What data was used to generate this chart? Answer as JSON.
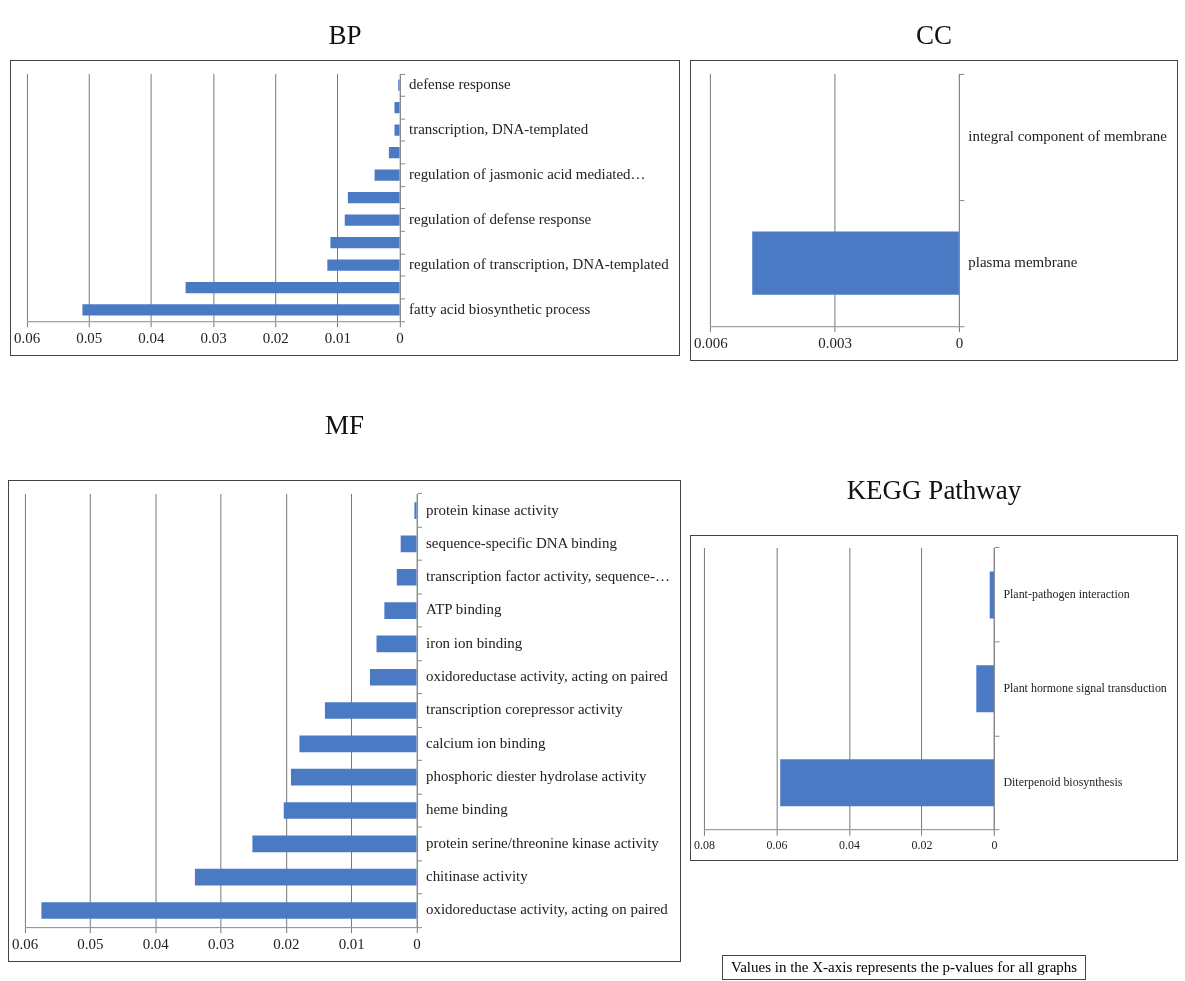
{
  "chart_data": [
    {
      "type": "bar",
      "title": "BP",
      "orientation": "horizontal",
      "categories": [
        "defense response",
        null,
        "transcription, DNA-templated",
        null,
        "regulation of jasmonic acid mediated…",
        null,
        "regulation of defense response",
        null,
        "regulation of transcription, DNA-templated",
        null,
        "fatty acid biosynthetic process"
      ],
      "values": [
        0.0003,
        0.0009,
        0.0009,
        0.0018,
        0.0041,
        0.0084,
        0.0089,
        0.0112,
        0.0117,
        0.0345,
        0.0511
      ],
      "color": "#4a7ac4",
      "xlim": [
        0.06,
        0
      ],
      "xticks": [
        0.06,
        0.05,
        0.04,
        0.03,
        0.02,
        0.01,
        0
      ],
      "grid": "x"
    },
    {
      "type": "bar",
      "title": "CC",
      "orientation": "horizontal",
      "categories": [
        "integral component of membrane",
        "plasma membrane"
      ],
      "values": [
        null,
        0.005
      ],
      "color": "#4a7ac4",
      "xlim": [
        0.006,
        0
      ],
      "xticks": [
        0.006,
        0.003,
        0
      ],
      "grid": "x"
    },
    {
      "type": "bar",
      "title": "MF",
      "orientation": "horizontal",
      "categories": [
        "protein kinase activity",
        "sequence-specific DNA binding",
        "transcription factor activity, sequence-…",
        "ATP binding",
        "iron ion binding",
        "oxidoreductase activity, acting on paired",
        "transcription corepressor activity",
        "calcium ion binding",
        "phosphoric diester hydrolase activity",
        "heme binding",
        "protein serine/threonine kinase activity",
        "chitinase activity",
        "oxidoreductase activity, acting on paired"
      ],
      "values": [
        0.0004,
        0.0025,
        0.0031,
        0.005,
        0.0062,
        0.0072,
        0.0141,
        0.018,
        0.0193,
        0.0204,
        0.0252,
        0.034,
        0.0575
      ],
      "color": "#4a7ac4",
      "xlim": [
        0.06,
        0
      ],
      "xticks": [
        0.06,
        0.05,
        0.04,
        0.03,
        0.02,
        0.01,
        0
      ],
      "grid": "x"
    },
    {
      "type": "bar",
      "title": "KEGG Pathway",
      "orientation": "horizontal",
      "categories": [
        "Plant-pathogen interaction",
        "Plant hormone signal transduction",
        "Diterpenoid biosynthesis"
      ],
      "values": [
        0.0013,
        0.005,
        0.0591
      ],
      "color": "#4a7ac4",
      "xlim": [
        0.08,
        0
      ],
      "xticks": [
        0.08,
        0.06,
        0.04,
        0.02,
        0
      ],
      "grid": "x",
      "annotations": [
        "Values in the X-axis represents the p-values for all graphs"
      ]
    }
  ]
}
